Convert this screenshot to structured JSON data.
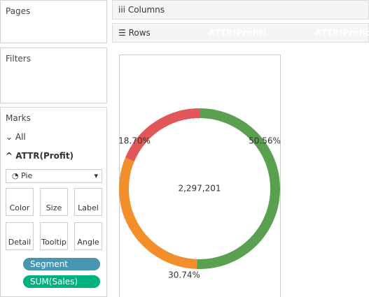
{
  "shelves": {
    "columns": "Columns",
    "rows": "Rows",
    "row_pills": [
      "ATTR(Profit)",
      "ATTR(Profit)"
    ]
  },
  "cards": {
    "pages": "Pages",
    "filters": "Filters",
    "marks": "Marks"
  },
  "marks_card": {
    "all": "All",
    "measure": "ATTR(Profit)",
    "mark_type": "Pie",
    "buttons": [
      "Color",
      "Size",
      "Label",
      "Detail",
      "Tooltip",
      "Angle"
    ],
    "pills": [
      "Segment",
      "SUM(Sales)"
    ]
  },
  "chart_data": {
    "type": "pie",
    "center_label": "2,297,201",
    "values": [
      50.56,
      30.74,
      18.7
    ],
    "value_labels": [
      "50.56%",
      "30.74%",
      "18.70%"
    ],
    "colors": [
      "#59a14f",
      "#f28e2b",
      "#e15759"
    ]
  }
}
